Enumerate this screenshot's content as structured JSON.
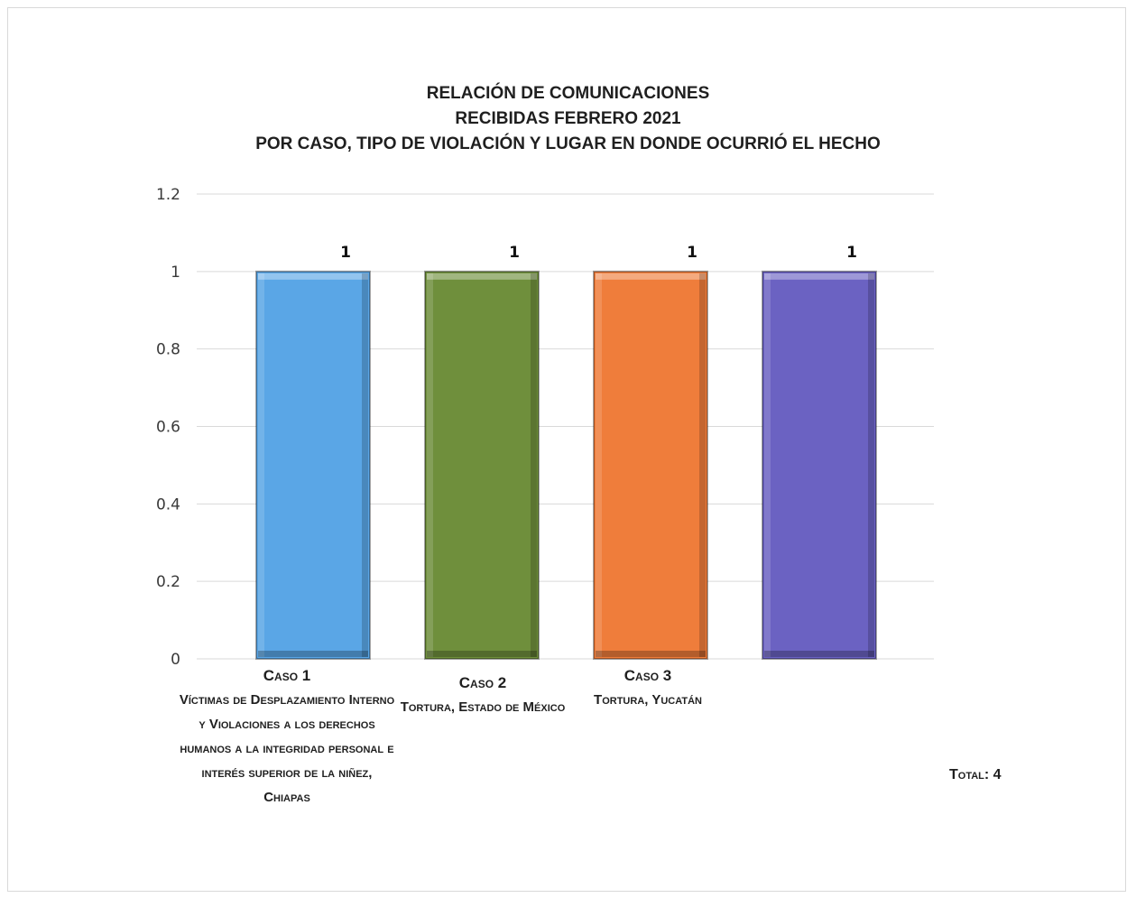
{
  "chart_data": {
    "type": "bar",
    "title": [
      "Relación de Comunicaciones",
      "Recibidas Febrero 2021",
      "Por caso, tipo de violación y lugar en donde ocurrió el hecho"
    ],
    "categories": [
      {
        "name": "Caso 1",
        "detail": "Víctimas de Desplazamiento Interno y Violaciones a los derechos humanos a la integridad personal e interés superior de la niñez, Chiapas"
      },
      {
        "name": "Caso 2",
        "detail": "Tortura, Estado de México"
      },
      {
        "name": "Caso 3",
        "detail": "Tortura, Yucatán"
      },
      {
        "name": "",
        "detail": ""
      }
    ],
    "values": [
      1,
      1,
      1,
      1
    ],
    "data_labels": [
      "1",
      "1",
      "1",
      "1"
    ],
    "colors": [
      "#5aa6e6",
      "#6f8f3c",
      "#ef7d3b",
      "#6b62c2"
    ],
    "ylim": [
      0,
      1.2
    ],
    "yticks": [
      "0",
      "0.2",
      "0.4",
      "0.6",
      "0.8",
      "1",
      "1.2"
    ],
    "grid": true,
    "xlabel": "",
    "ylabel": ""
  },
  "total_label": "Total:  4"
}
